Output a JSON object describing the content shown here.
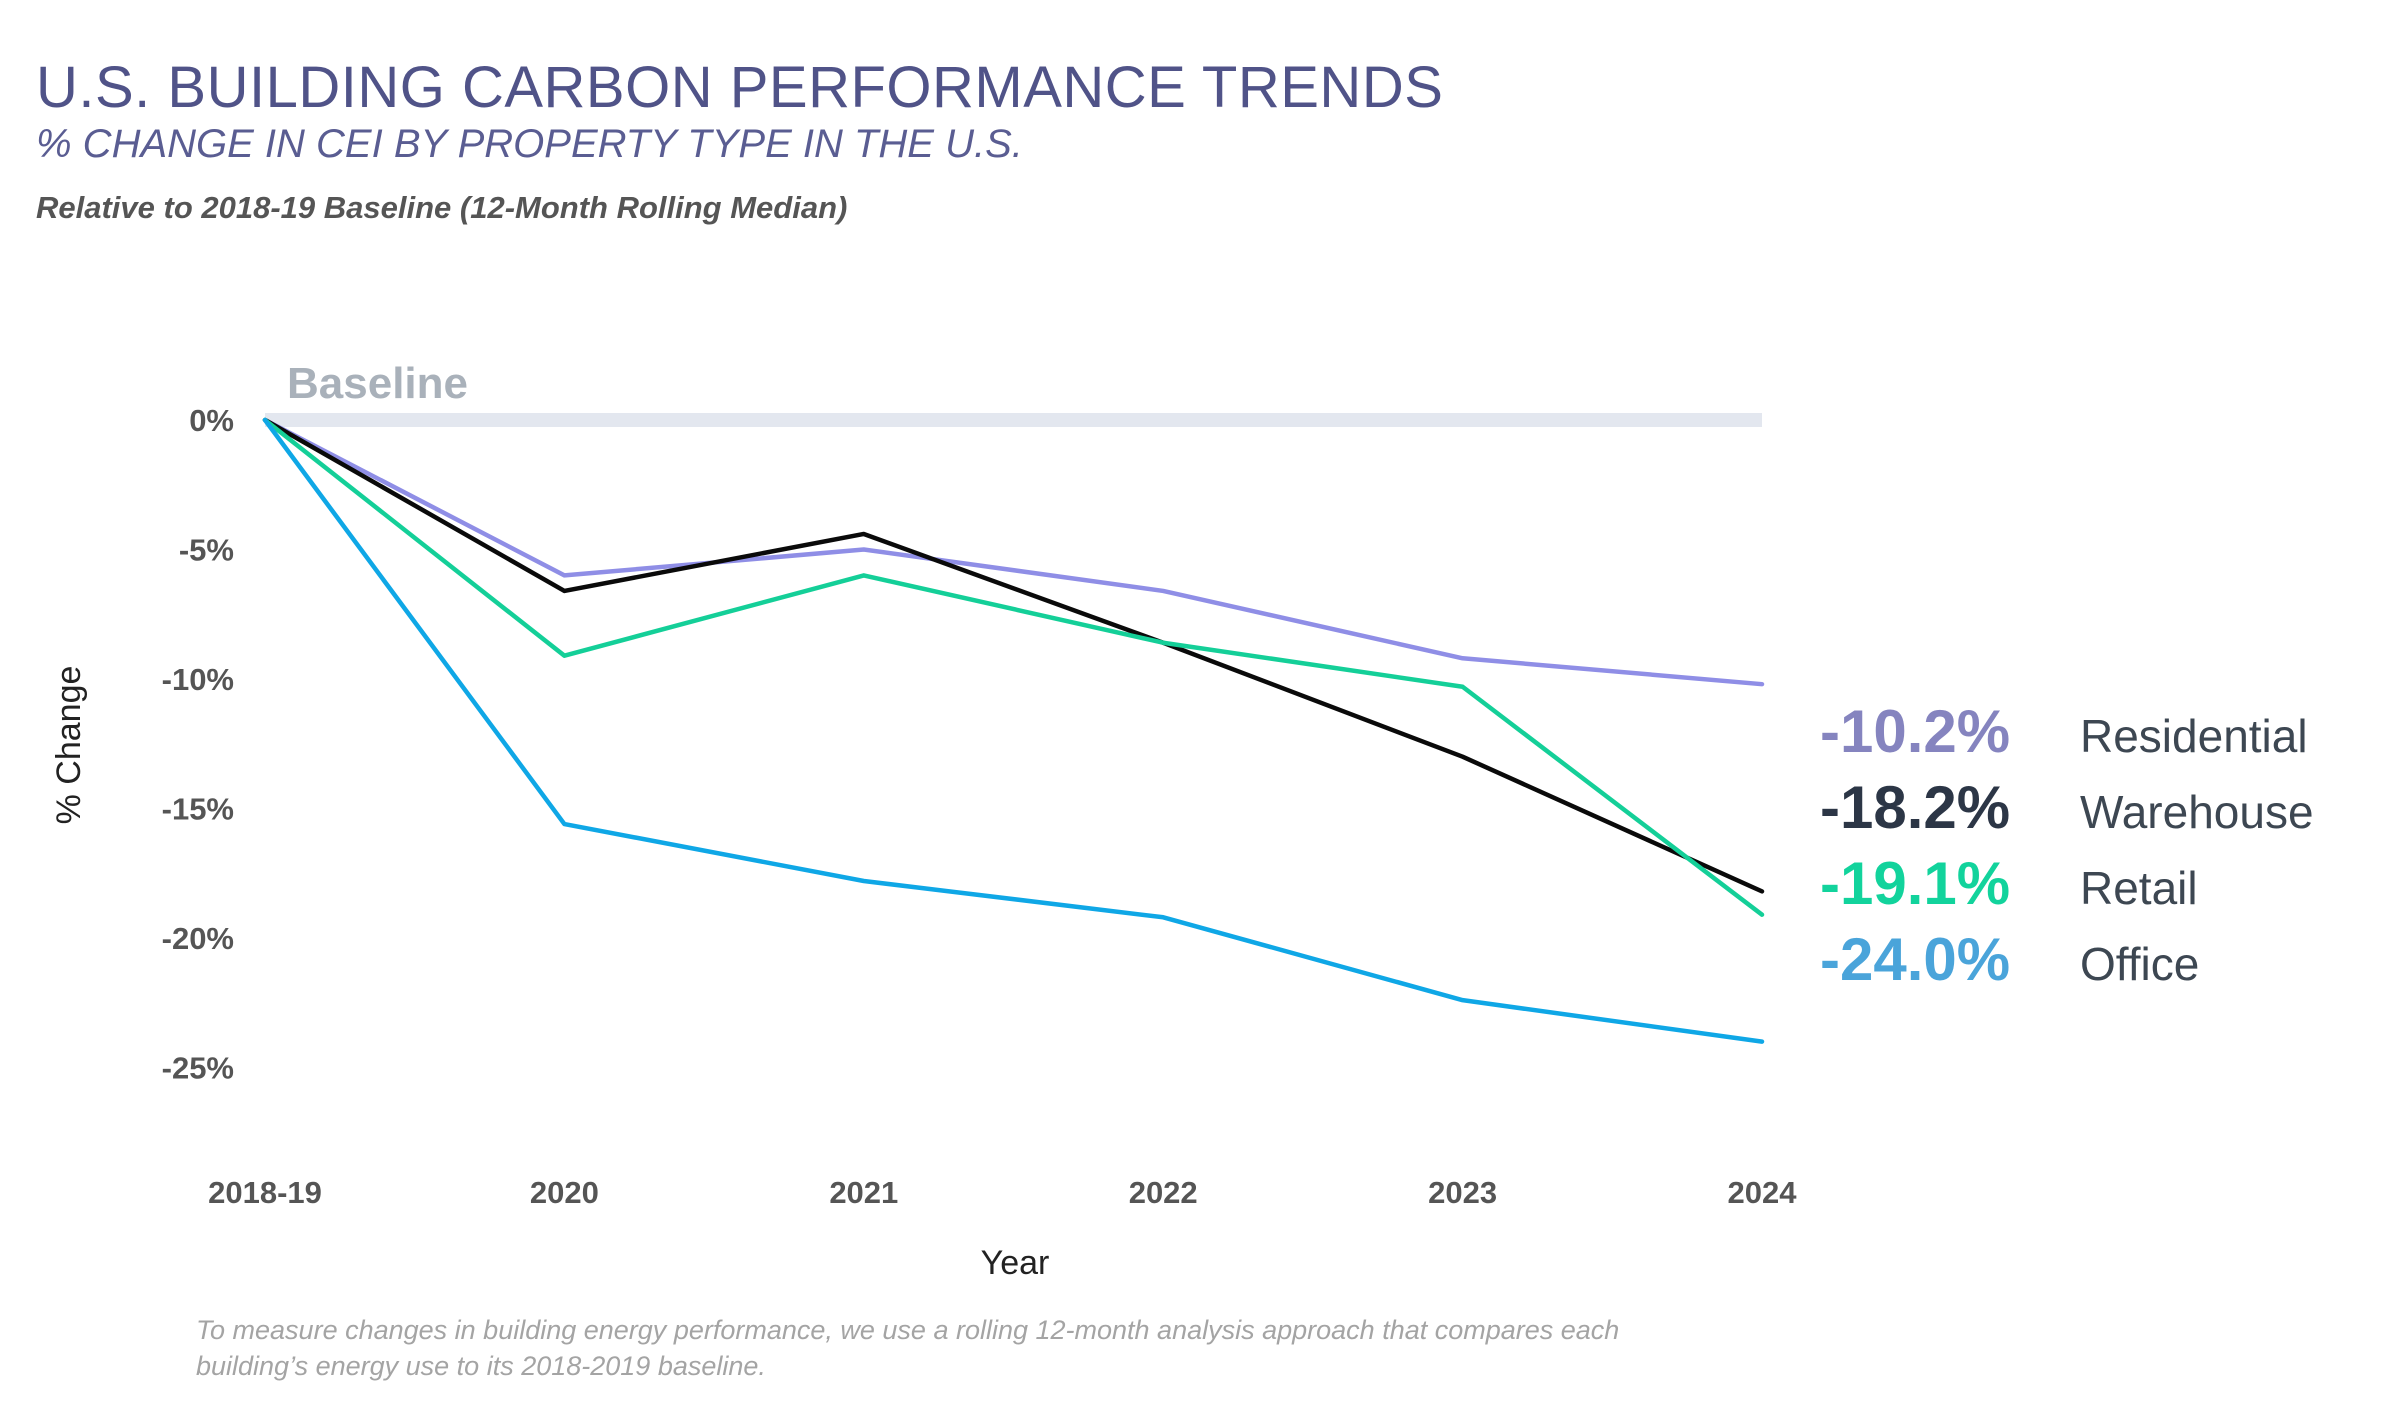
{
  "header": {
    "title": "U.S. BUILDING CARBON PERFORMANCE TRENDS",
    "subtitle": "% CHANGE IN CEI BY PROPERTY TYPE IN THE U.S.",
    "note": "Relative to 2018-19 Baseline (12-Month Rolling Median)"
  },
  "footnote": {
    "line1": "To measure changes in building energy performance, we use a rolling 12-month analysis approach that compares each",
    "line2": "building’s energy use to its 2018-2019 baseline."
  },
  "chart_data": {
    "type": "line",
    "xlabel": "Year",
    "ylabel": "% Change",
    "categories": [
      "2018-19",
      "2020",
      "2021",
      "2022",
      "2023",
      "2024"
    ],
    "ylim": [
      -28.5,
      1
    ],
    "yticks": [
      0,
      -5,
      -10,
      -15,
      -20,
      -25
    ],
    "ytick_labels": [
      "0%",
      "-5%",
      "-10%",
      "-15%",
      "-20%",
      "-25%"
    ],
    "grid": false,
    "baseline": {
      "label": "Baseline",
      "value": 0,
      "color": "#e3e7ef"
    },
    "series": [
      {
        "name": "Residential",
        "values": [
          0,
          -6.0,
          -5.0,
          -6.6,
          -9.2,
          -10.2
        ],
        "end_label": "-10.2%",
        "color": "#8f8ee6",
        "label_color": "#8584bf"
      },
      {
        "name": "Warehouse",
        "values": [
          0,
          -6.6,
          -4.4,
          -8.6,
          -13.0,
          -18.2
        ],
        "end_label": "-18.2%",
        "color": "#0a0a0a",
        "label_color": "#2c3646"
      },
      {
        "name": "Retail",
        "values": [
          0,
          -9.1,
          -6.0,
          -8.6,
          -10.3,
          -19.1
        ],
        "end_label": "-19.1%",
        "color": "#14cf98",
        "label_color": "#12d39c"
      },
      {
        "name": "Office",
        "values": [
          0,
          -15.6,
          -17.8,
          -19.2,
          -22.4,
          -24.0
        ],
        "end_label": "-24.0%",
        "color": "#0fa7e6",
        "label_color": "#4aa4da"
      }
    ]
  }
}
